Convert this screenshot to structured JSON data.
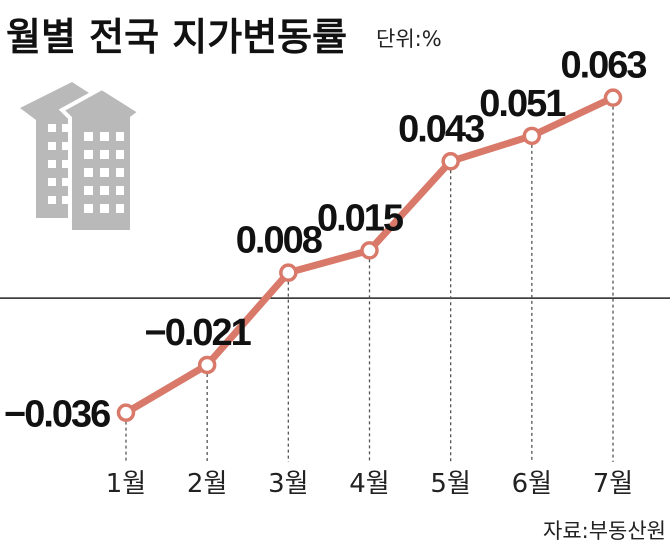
{
  "header": {
    "title": "월별 전국 지가변동률",
    "unit": "단위:%"
  },
  "source": "자료:부동산원",
  "chart_data": {
    "type": "line",
    "title": "월별 전국 지가변동률",
    "unit": "%",
    "categories": [
      "1월",
      "2월",
      "3월",
      "4월",
      "5월",
      "6월",
      "7월"
    ],
    "series": [
      {
        "values": [
          -0.036,
          -0.021,
          0.008,
          0.015,
          0.043,
          0.051,
          0.063
        ]
      }
    ],
    "data_labels": [
      "−0.036",
      "−0.021",
      "0.008",
      "0.015",
      "0.043",
      "0.051",
      "0.063"
    ],
    "baseline": 0,
    "ylim": [
      -0.0405,
      0.0698
    ],
    "grid": false,
    "legend": "none",
    "colors": {
      "line": "#d9796a",
      "marker_fill": "#ffffff",
      "baseline": "#222222",
      "drop_line": "#555555",
      "icon": "#b9b9b9"
    }
  },
  "icons": {
    "building": "building-icon"
  }
}
